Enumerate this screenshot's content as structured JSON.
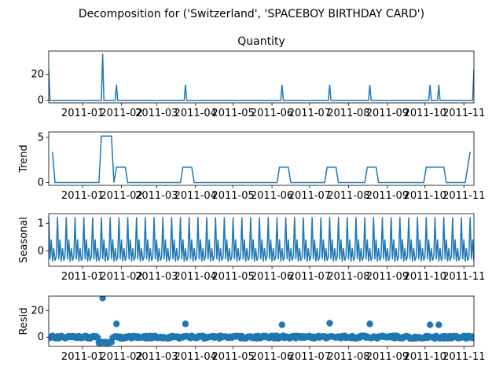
{
  "figure": {
    "suptitle": "Decomposition for ('Switzerland', 'SPACEBOY BIRTHDAY CARD')"
  },
  "colors": {
    "series": "#1f77b4",
    "axes": "#000000",
    "background": "#ffffff"
  },
  "chart_data": [
    {
      "type": "line",
      "title": "Quantity",
      "ylabel": "",
      "x_tick_labels": [
        "2011-01",
        "2011-02",
        "2011-03",
        "2011-04",
        "2011-05",
        "2011-06",
        "2011-07",
        "2011-08",
        "2011-09",
        "2011-10",
        "2011-11"
      ],
      "y_ticks": [
        0,
        20
      ],
      "ylim": [
        -2,
        38
      ],
      "x_range": [
        "2010-12-05",
        "2011-11-09"
      ],
      "grid": false,
      "baseline": 0,
      "spikes": [
        {
          "date": "2010-12-05",
          "value": 24
        },
        {
          "date": "2011-01-17",
          "value": 36
        },
        {
          "date": "2011-01-28",
          "value": 12
        },
        {
          "date": "2011-03-24",
          "value": 12
        },
        {
          "date": "2011-06-09",
          "value": 12
        },
        {
          "date": "2011-07-17",
          "value": 12
        },
        {
          "date": "2011-08-18",
          "value": 12
        },
        {
          "date": "2011-10-05",
          "value": 12
        },
        {
          "date": "2011-10-12",
          "value": 12
        },
        {
          "date": "2011-11-09",
          "value": 24
        }
      ]
    },
    {
      "type": "line",
      "title": "",
      "ylabel": "Trend",
      "x_tick_labels": [
        "2011-01",
        "2011-02",
        "2011-03",
        "2011-04",
        "2011-05",
        "2011-06",
        "2011-07",
        "2011-08",
        "2011-09",
        "2011-10",
        "2011-11"
      ],
      "y_ticks": [
        0,
        5
      ],
      "ylim": [
        -0.3,
        5.6
      ],
      "grid": false,
      "points": [
        [
          "2010-12-08",
          3.4
        ],
        [
          "2010-12-10",
          0
        ],
        [
          "2011-01-14",
          0
        ],
        [
          "2011-01-16",
          5.14
        ],
        [
          "2011-01-24",
          5.14
        ],
        [
          "2011-01-26",
          0
        ],
        [
          "2011-01-28",
          1.71
        ],
        [
          "2011-02-04",
          1.71
        ],
        [
          "2011-02-06",
          0
        ],
        [
          "2011-03-20",
          0
        ],
        [
          "2011-03-22",
          1.71
        ],
        [
          "2011-03-29",
          1.71
        ],
        [
          "2011-03-31",
          0
        ],
        [
          "2011-06-05",
          0
        ],
        [
          "2011-06-07",
          1.71
        ],
        [
          "2011-06-14",
          1.71
        ],
        [
          "2011-06-16",
          0
        ],
        [
          "2011-07-13",
          0
        ],
        [
          "2011-07-15",
          1.71
        ],
        [
          "2011-07-22",
          1.71
        ],
        [
          "2011-07-24",
          0
        ],
        [
          "2011-08-14",
          0
        ],
        [
          "2011-08-16",
          1.71
        ],
        [
          "2011-08-23",
          1.71
        ],
        [
          "2011-08-25",
          0
        ],
        [
          "2011-09-30",
          0
        ],
        [
          "2011-10-02",
          1.71
        ],
        [
          "2011-10-16",
          1.71
        ],
        [
          "2011-10-18",
          0
        ],
        [
          "2011-11-02",
          0
        ],
        [
          "2011-11-06",
          3.4
        ]
      ]
    },
    {
      "type": "line",
      "title": "",
      "ylabel": "Seasonal",
      "x_tick_labels": [
        "2011-01",
        "2011-02",
        "2011-03",
        "2011-04",
        "2011-05",
        "2011-06",
        "2011-07",
        "2011-08",
        "2011-09",
        "2011-10",
        "2011-11"
      ],
      "y_ticks": [
        0,
        1
      ],
      "ylim": [
        -0.55,
        1.35
      ],
      "grid": false,
      "period_days": 7,
      "weekly_pattern": [
        1.22,
        -0.3,
        0.42,
        -0.38,
        0.1,
        -0.35,
        -0.2
      ]
    },
    {
      "type": "scatter",
      "title": "",
      "ylabel": "Resid",
      "x_tick_labels": [
        "2011-01",
        "2011-02",
        "2011-03",
        "2011-04",
        "2011-05",
        "2011-06",
        "2011-07",
        "2011-08",
        "2011-09",
        "2011-10",
        "2011-11"
      ],
      "y_ticks": [
        0,
        20
      ],
      "ylim": [
        -7,
        31
      ],
      "grid": false,
      "outliers": [
        {
          "date": "2011-01-17",
          "value": 29.5
        },
        {
          "date": "2011-01-28",
          "value": 10
        },
        {
          "date": "2011-03-24",
          "value": 10
        },
        {
          "date": "2011-06-09",
          "value": 9.3
        },
        {
          "date": "2011-07-17",
          "value": 10.5
        },
        {
          "date": "2011-08-18",
          "value": 10
        },
        {
          "date": "2011-10-05",
          "value": 9.3
        },
        {
          "date": "2011-10-12",
          "value": 9.3
        }
      ],
      "baseline_noise_range": [
        -3.5,
        1
      ]
    }
  ]
}
